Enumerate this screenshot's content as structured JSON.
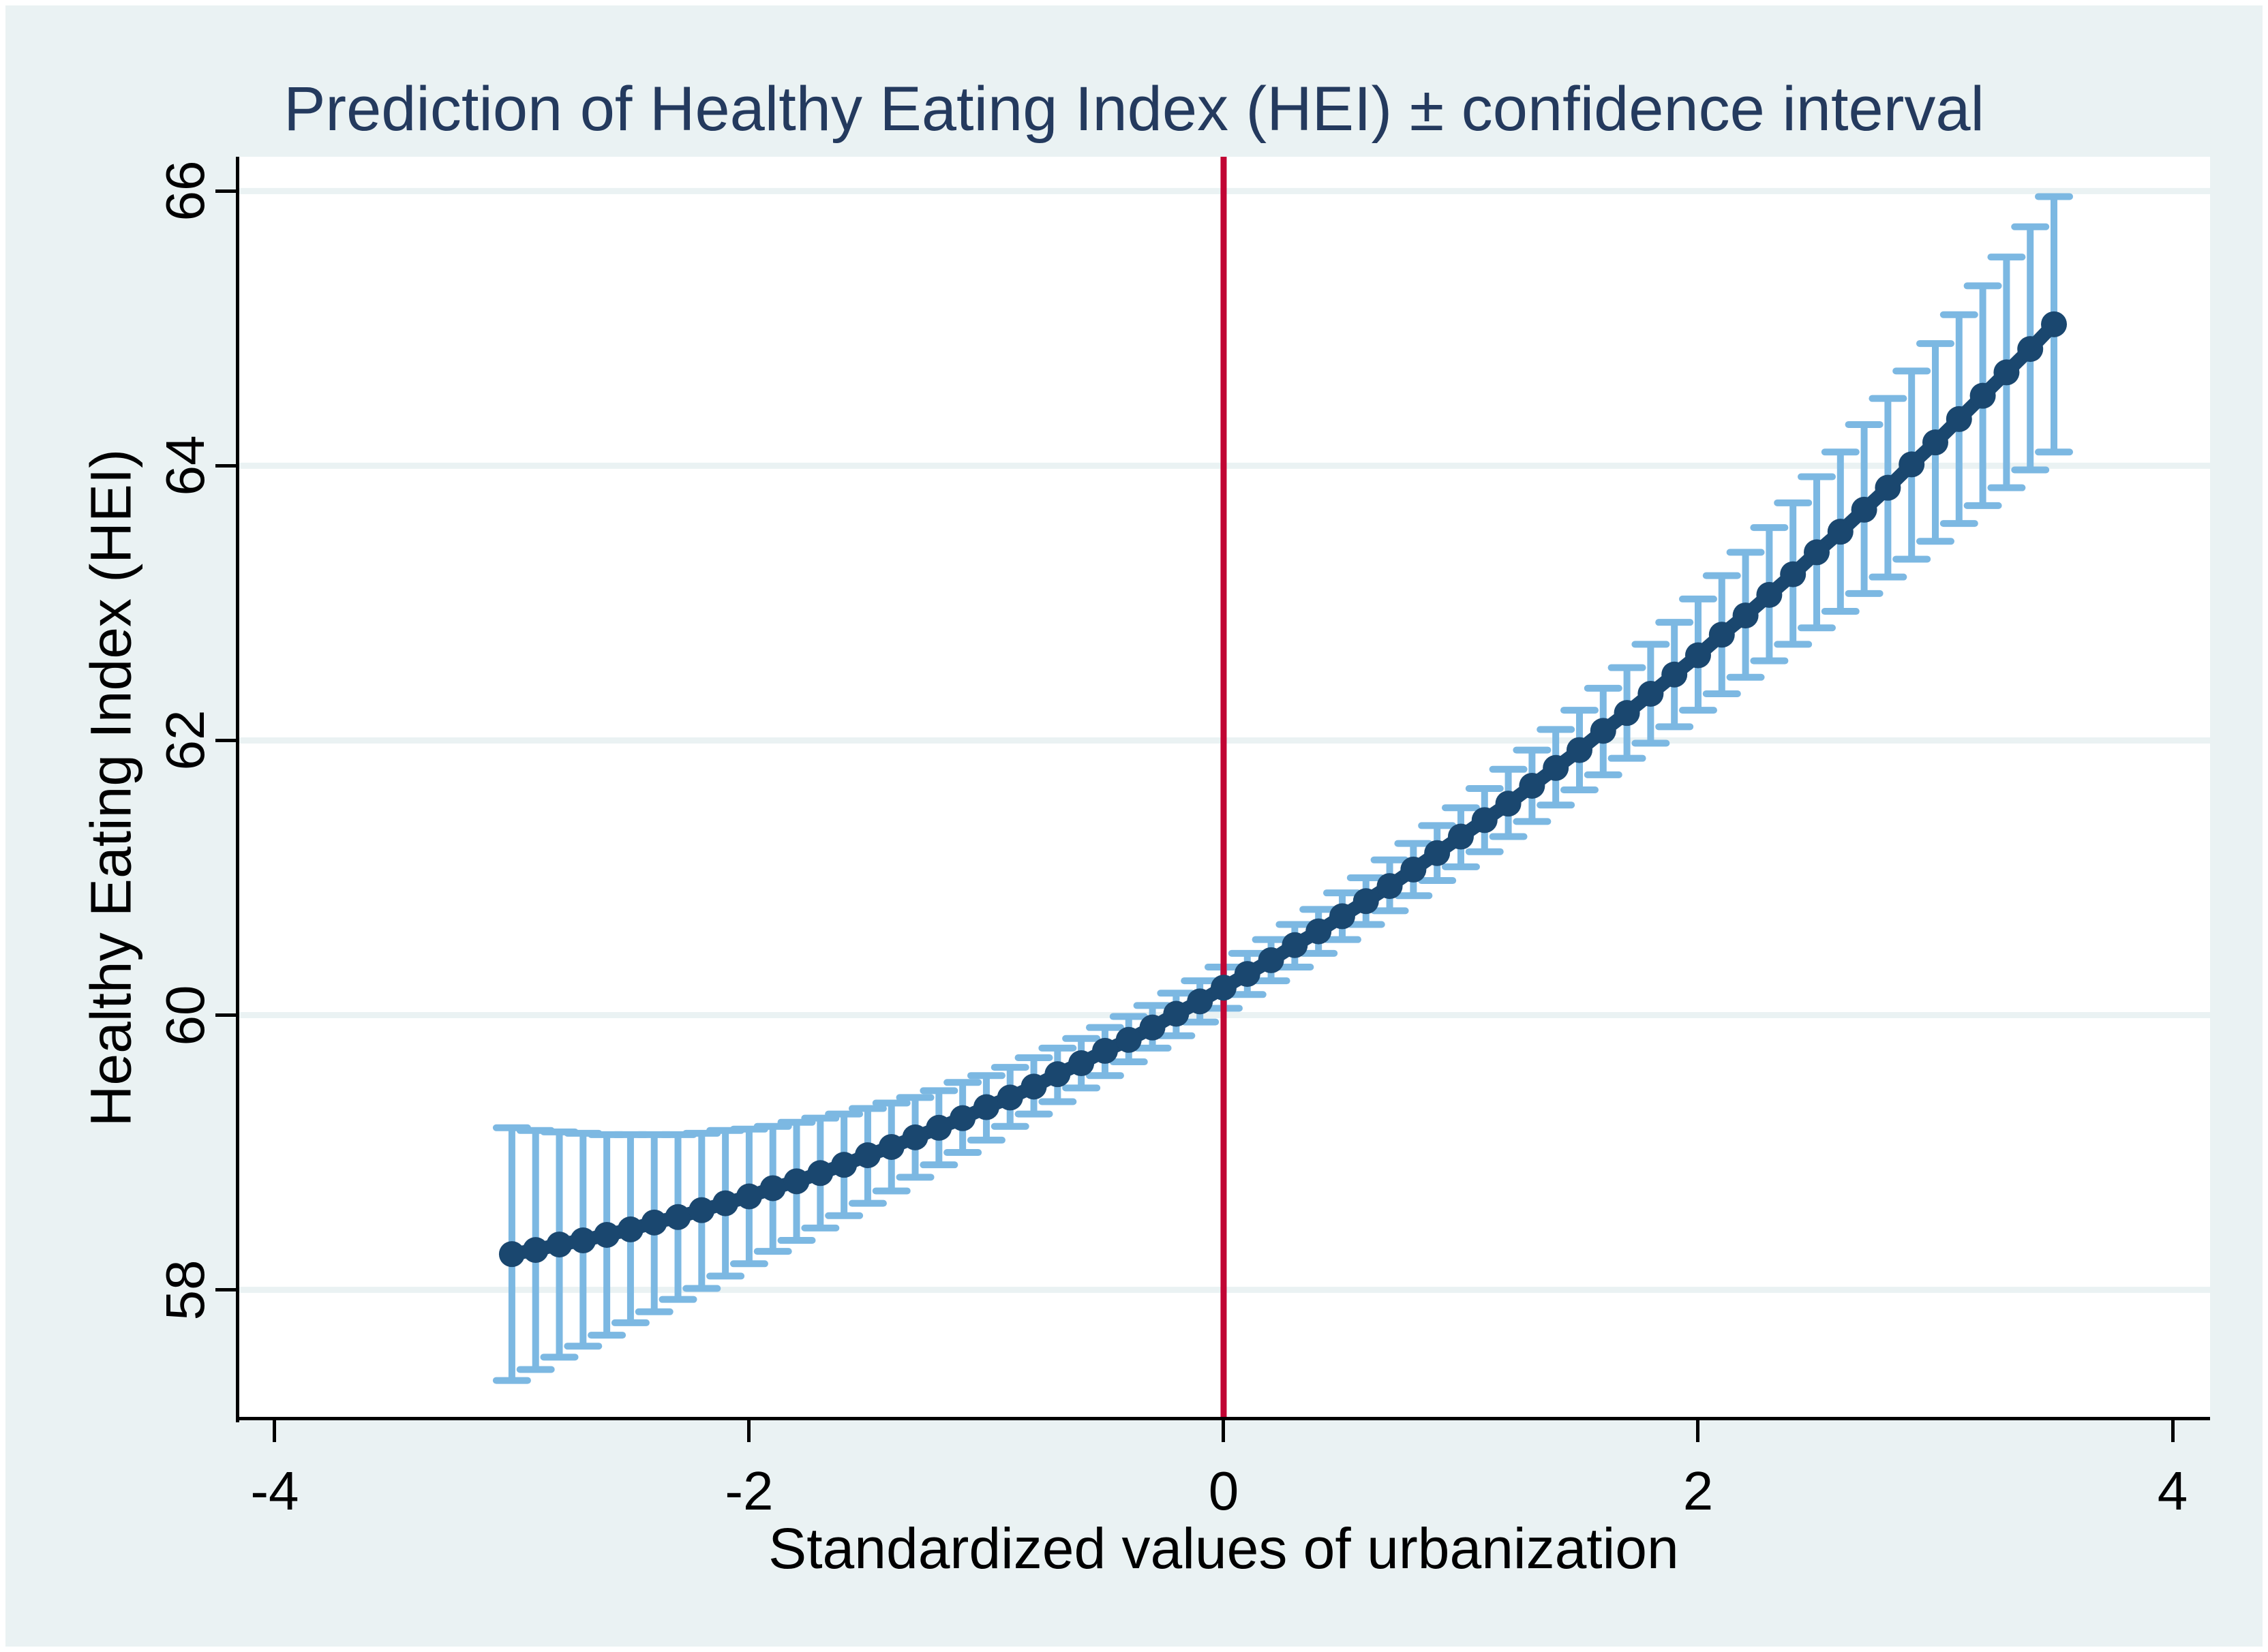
{
  "figure": {
    "background_color": "#eaf2f3",
    "plot_background_color": "#ffffff",
    "title_color": "#243a5e"
  },
  "chart_data": {
    "type": "scatter",
    "title": "Prediction of Healthy Eating Index (HEI) ± confidence interval",
    "xlabel": "Standardized values of urbanization",
    "ylabel": "Healthy Eating Index (HEI)",
    "xlim": [
      -4.152,
      4.158
    ],
    "ylim": [
      57.06,
      66.25
    ],
    "x_ticks": [
      -4,
      -2,
      0,
      2,
      4
    ],
    "x_tick_labels": [
      "-4",
      "-2",
      "0",
      "2",
      "4"
    ],
    "y_ticks": [
      58,
      60,
      62,
      64,
      66
    ],
    "y_tick_labels": [
      "58",
      "60",
      "62",
      "64",
      "66"
    ],
    "grid": "horizontal-only",
    "legend": "none",
    "reference_line_x": 0,
    "colors": {
      "point": "#1a476f",
      "connect_line": "#1a476f",
      "ci_bar": "#7cb8e2",
      "reference_line": "#c10534",
      "gridline": "#eaf2f3",
      "axis": "#000000",
      "tick_text": "#000000",
      "title_text": "#243a5e"
    },
    "columns": [
      "x",
      "predicted_hei",
      "ci_low",
      "ci_high"
    ],
    "points": [
      [
        -3.0,
        58.26,
        57.34,
        59.18
      ],
      [
        -2.9,
        58.29,
        57.42,
        59.16
      ],
      [
        -2.8,
        58.33,
        57.51,
        59.15
      ],
      [
        -2.7,
        58.36,
        57.59,
        59.14
      ],
      [
        -2.6,
        58.4,
        57.67,
        59.13
      ],
      [
        -2.5,
        58.44,
        57.76,
        59.13
      ],
      [
        -2.4,
        58.49,
        57.84,
        59.13
      ],
      [
        -2.3,
        58.53,
        57.93,
        59.13
      ],
      [
        -2.2,
        58.58,
        58.01,
        59.14
      ],
      [
        -2.1,
        58.63,
        58.1,
        59.16
      ],
      [
        -2.0,
        58.68,
        58.19,
        59.17
      ],
      [
        -1.9,
        58.74,
        58.28,
        59.19
      ],
      [
        -1.8,
        58.79,
        58.36,
        59.22
      ],
      [
        -1.7,
        58.85,
        58.45,
        59.25
      ],
      [
        -1.6,
        58.91,
        58.54,
        59.28
      ],
      [
        -1.5,
        58.98,
        58.63,
        59.32
      ],
      [
        -1.4,
        59.04,
        58.72,
        59.36
      ],
      [
        -1.3,
        59.11,
        58.82,
        59.4
      ],
      [
        -1.2,
        59.18,
        58.91,
        59.45
      ],
      [
        -1.1,
        59.25,
        59.0,
        59.51
      ],
      [
        -1.0,
        59.33,
        59.09,
        59.56
      ],
      [
        -0.9,
        59.4,
        59.19,
        59.62
      ],
      [
        -0.8,
        59.48,
        59.28,
        59.69
      ],
      [
        -0.7,
        59.57,
        59.37,
        59.76
      ],
      [
        -0.6,
        59.65,
        59.47,
        59.83
      ],
      [
        -0.5,
        59.74,
        59.56,
        59.91
      ],
      [
        -0.4,
        59.82,
        59.66,
        59.99
      ],
      [
        -0.3,
        59.91,
        59.76,
        60.07
      ],
      [
        -0.2,
        60.01,
        59.85,
        60.16
      ],
      [
        -0.1,
        60.1,
        59.95,
        60.25
      ],
      [
        0.0,
        60.2,
        60.05,
        60.35
      ],
      [
        0.1,
        60.3,
        60.15,
        60.45
      ],
      [
        0.2,
        60.4,
        60.25,
        60.55
      ],
      [
        0.3,
        60.51,
        60.35,
        60.66
      ],
      [
        0.4,
        60.61,
        60.45,
        60.77
      ],
      [
        0.5,
        60.72,
        60.55,
        60.89
      ],
      [
        0.6,
        60.83,
        60.66,
        61.0
      ],
      [
        0.7,
        60.94,
        60.76,
        61.13
      ],
      [
        0.8,
        61.06,
        60.87,
        61.25
      ],
      [
        0.9,
        61.18,
        60.98,
        61.38
      ],
      [
        1.0,
        61.3,
        61.08,
        61.51
      ],
      [
        1.1,
        61.42,
        61.19,
        61.65
      ],
      [
        1.2,
        61.54,
        61.3,
        61.79
      ],
      [
        1.3,
        61.67,
        61.41,
        61.93
      ],
      [
        1.4,
        61.8,
        61.53,
        62.08
      ],
      [
        1.5,
        61.93,
        61.64,
        62.22
      ],
      [
        1.6,
        62.07,
        61.75,
        62.38
      ],
      [
        1.7,
        62.2,
        61.87,
        62.53
      ],
      [
        1.8,
        62.34,
        61.98,
        62.7
      ],
      [
        1.9,
        62.48,
        62.1,
        62.86
      ],
      [
        2.0,
        62.62,
        62.22,
        63.03
      ],
      [
        2.1,
        62.77,
        62.34,
        63.2
      ],
      [
        2.2,
        62.91,
        62.46,
        63.37
      ],
      [
        2.3,
        63.06,
        62.58,
        63.55
      ],
      [
        2.4,
        63.21,
        62.7,
        63.73
      ],
      [
        2.5,
        63.37,
        62.82,
        63.92
      ],
      [
        2.6,
        63.52,
        62.94,
        64.1
      ],
      [
        2.7,
        63.68,
        63.07,
        64.3
      ],
      [
        2.8,
        63.84,
        63.19,
        64.49
      ],
      [
        2.9,
        64.01,
        63.32,
        64.69
      ],
      [
        3.0,
        64.17,
        63.45,
        64.89
      ],
      [
        3.1,
        64.34,
        63.58,
        65.1
      ],
      [
        3.2,
        64.51,
        63.71,
        65.31
      ],
      [
        3.3,
        64.68,
        63.84,
        65.52
      ],
      [
        3.4,
        64.85,
        63.97,
        65.74
      ],
      [
        3.5,
        65.03,
        64.1,
        65.96
      ]
    ]
  }
}
